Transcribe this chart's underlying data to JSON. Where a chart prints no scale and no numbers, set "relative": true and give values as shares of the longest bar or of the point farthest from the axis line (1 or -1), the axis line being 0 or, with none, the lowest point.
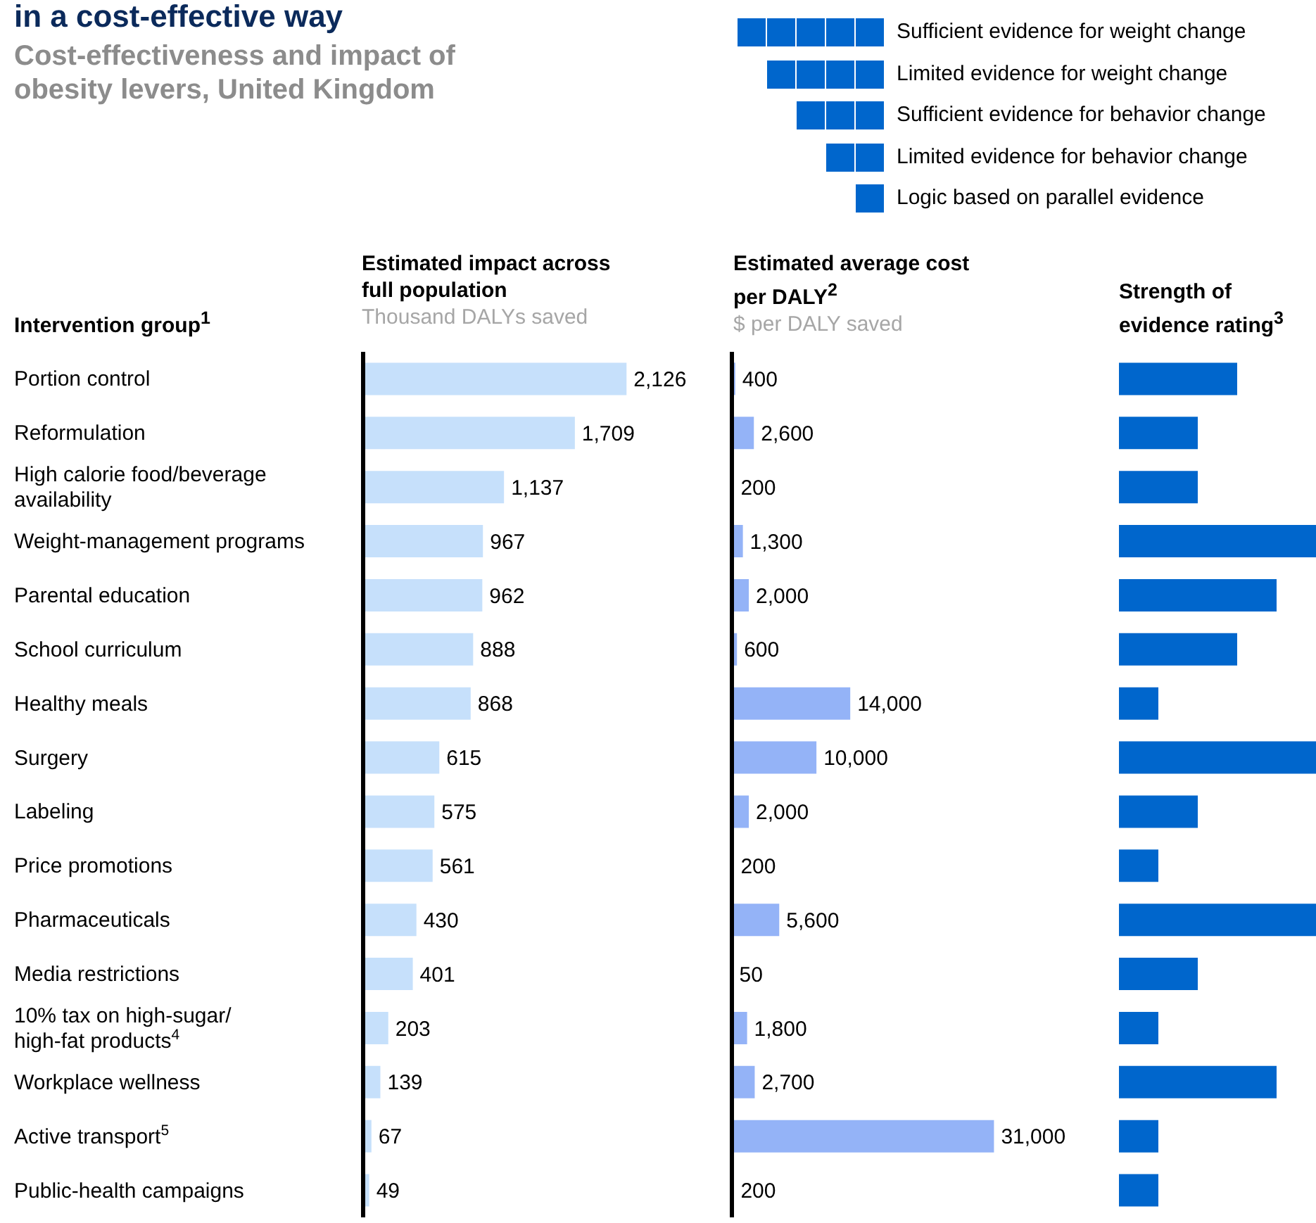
{
  "chart_data": [
    {
      "type": "bar",
      "orientation": "horizontal",
      "title": "Estimated impact across full population",
      "subtitle": "Thousand DALYs saved",
      "ylabel": "Intervention group$^{1}$",
      "annotations": [
        "in a cost-effective way",
        "Cost-effectiveness and impact of obesity levers, United Kingdom"
      ],
      "categories": [
        "Portion control",
        "Reformulation",
        "High calorie food/beverage availability",
        "Weight-management programs",
        "Parental education",
        "School curriculum",
        "Healthy meals",
        "Surgery",
        "Labeling",
        "Price promotions",
        "Pharmaceuticals",
        "Media restrictions",
        "10% tax on high-sugar/ high-fat products$^{4}$",
        "Workplace wellness",
        "Active transport$^{5}$",
        "Public-health campaigns"
      ],
      "values": [
        2126,
        1709,
        1137,
        967,
        962,
        888,
        868,
        615,
        575,
        561,
        430,
        401,
        203,
        139,
        67,
        49
      ],
      "color": "#c6e0fb",
      "value_labels": [
        "2,126",
        "1,709",
        "1,137",
        "967",
        "962",
        "888",
        "868",
        "615",
        "575",
        "561",
        "430",
        "401",
        "203",
        "139",
        "67",
        "49"
      ],
      "tick_labels": "y",
      "grid": false,
      "legend": false
    },
    {
      "type": "bar",
      "orientation": "horizontal",
      "title": "Estimated average cost per DALY$^{2}$",
      "subtitle": "$ per DALY saved",
      "values": [
        400,
        2600,
        200,
        1300,
        2000,
        600,
        14000,
        10000,
        2000,
        200,
        5600,
        50,
        1800,
        2700,
        31000,
        200
      ],
      "color": "#94b3f7",
      "value_labels": [
        "400",
        "2,600",
        "200",
        "1,300",
        "2,000",
        "600",
        "14,000",
        "10,000",
        "2,000",
        "200",
        "5,600",
        "50",
        "1,800",
        "2,700",
        "31,000",
        "200"
      ],
      "tick_labels": false,
      "grid": false,
      "legend": false
    },
    {
      "type": "bar",
      "orientation": "horizontal",
      "title": "Strength of evidence rating$^{3}$",
      "relative": true,
      "annotations": [
        "Sufficient evidence for weight change",
        "Limited evidence for weight change",
        "Sufficient evidence for behavior change",
        "Limited evidence for behavior change",
        "Logic based on parallel evidence"
      ],
      "values": [
        0.6,
        0.4,
        0.4,
        1,
        0.8,
        0.6,
        0.2,
        1,
        0.4,
        0.2,
        1,
        0.4,
        0.2,
        0.8,
        0.2,
        0.2
      ],
      "color": "#0066cc",
      "tick_labels": false,
      "grid": false,
      "legend": false
    }
  ]
}
